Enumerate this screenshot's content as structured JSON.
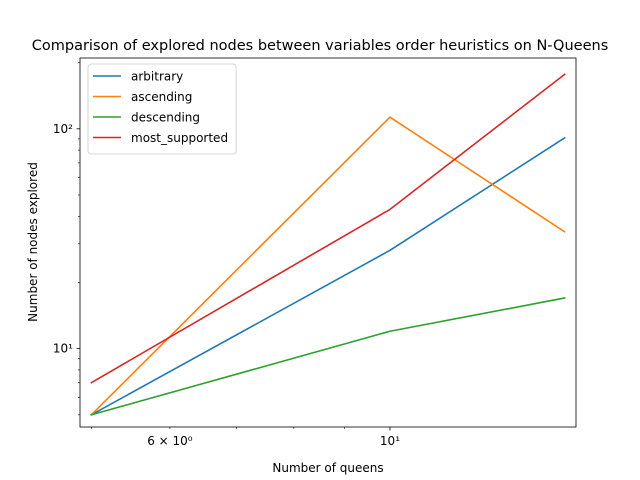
{
  "chart_data": {
    "type": "line",
    "title": "Comparison of explored nodes between variables order heuristics on N-Queens",
    "xlabel": "Number of queens",
    "ylabel": "Number of nodes explored",
    "xscale": "log",
    "yscale": "log",
    "xlim": [
      4.87,
      15.4
    ],
    "ylim": [
      4.4,
      210
    ],
    "x": [
      5,
      10,
      15
    ],
    "x_major_ticks": [
      {
        "value": 10,
        "label": "10¹"
      }
    ],
    "x_minor_tick_labels": [
      {
        "value": 6,
        "label": "6 × 10⁰"
      }
    ],
    "y_major_ticks": [
      {
        "value": 10,
        "label": "10¹"
      },
      {
        "value": 100,
        "label": "10²"
      }
    ],
    "legend_position": "top-left",
    "grid": false,
    "series": [
      {
        "name": "arbitrary",
        "color": "#1f77b4",
        "values": [
          5,
          28,
          91
        ]
      },
      {
        "name": "ascending",
        "color": "#ff7f0e",
        "values": [
          5,
          113,
          34
        ]
      },
      {
        "name": "descending",
        "color": "#2ca02c",
        "values": [
          5,
          12,
          17
        ]
      },
      {
        "name": "most_supported",
        "color": "#d62728",
        "values": [
          7,
          43,
          177
        ]
      }
    ]
  }
}
